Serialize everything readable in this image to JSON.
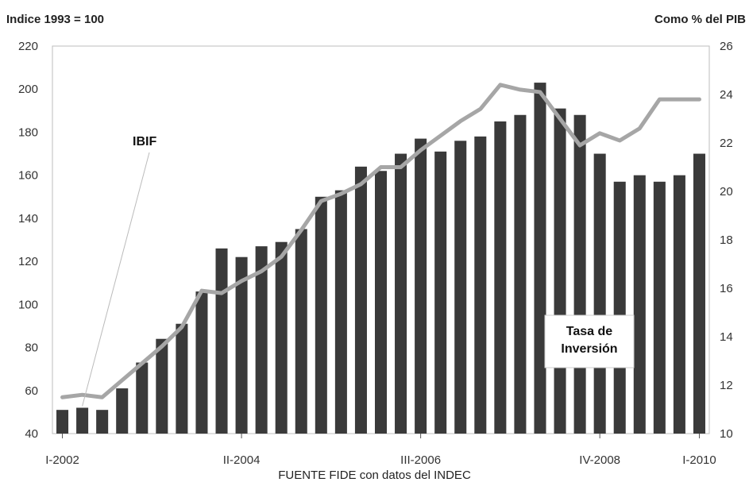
{
  "chart_data": {
    "type": "bar",
    "left_axis_title": "Indice 1993 = 100",
    "right_axis_title": "Como % del PIB",
    "source": "FUENTE FIDE con datos del INDEC",
    "x_tick_labels": [
      "I-2002",
      "II-2004",
      "III-2006",
      "IV-2008",
      "I-2010"
    ],
    "x_tick_positions": [
      0,
      9,
      18,
      27,
      32
    ],
    "y_left_ticks": [
      40,
      60,
      80,
      100,
      120,
      140,
      160,
      180,
      200,
      220
    ],
    "y_right_ticks": [
      10,
      12,
      14,
      16,
      18,
      20,
      22,
      24,
      26
    ],
    "ylim_left": [
      40,
      220
    ],
    "ylim_right": [
      10,
      26
    ],
    "series": [
      {
        "name": "IBIF",
        "kind": "bar",
        "axis": "left",
        "color": "#3a3a3a",
        "values": [
          51,
          52,
          51,
          61,
          73,
          84,
          91,
          106,
          126,
          122,
          127,
          129,
          135,
          150,
          153,
          164,
          162,
          170,
          177,
          171,
          176,
          178,
          185,
          188,
          203,
          191,
          188,
          170,
          157,
          160,
          157,
          160,
          170
        ]
      },
      {
        "name": "Tasa de Inversión",
        "kind": "line",
        "axis": "right",
        "color": "#a6a6a6",
        "values": [
          11.5,
          11.6,
          11.5,
          12.2,
          12.9,
          13.6,
          14.4,
          15.9,
          15.8,
          16.3,
          16.7,
          17.3,
          18.4,
          19.6,
          19.9,
          20.3,
          21.0,
          21.0,
          21.7,
          22.3,
          22.9,
          23.4,
          24.4,
          24.2,
          24.1,
          23.0,
          21.9,
          22.4,
          22.1,
          22.6,
          23.8,
          23.8,
          23.8
        ]
      }
    ],
    "annotations": {
      "bar_label": "IBIF",
      "line_label_1": "Tasa de",
      "line_label_2": "Inversión"
    },
    "grid": false,
    "legend": "none"
  }
}
